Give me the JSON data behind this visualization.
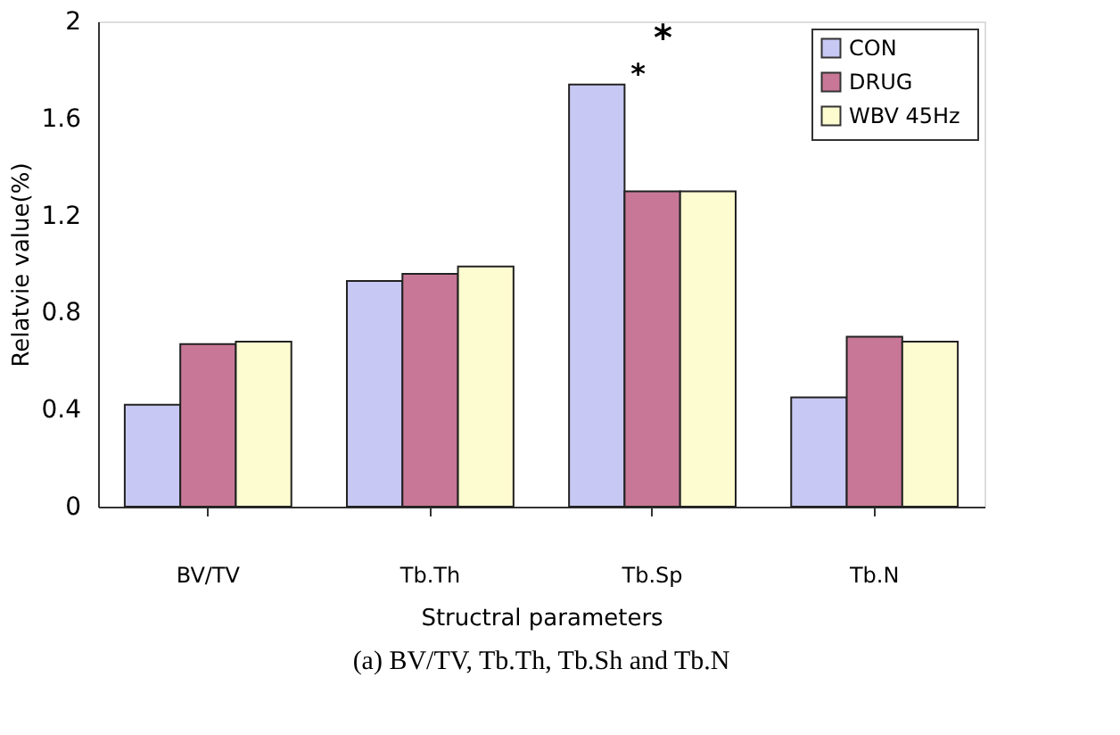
{
  "chart_data": {
    "type": "bar",
    "xlabel": "Structral parameters",
    "ylabel": "Relatvie value(%)",
    "categories": [
      "BV/TV",
      "Tb.Th",
      "Tb.Sp",
      "Tb.N"
    ],
    "series": [
      {
        "name": "CON",
        "color": "#c8c8f4",
        "values": [
          0.42,
          0.93,
          1.74,
          0.45
        ]
      },
      {
        "name": "DRUG",
        "color": "#c87896",
        "values": [
          0.67,
          0.96,
          1.3,
          0.7
        ]
      },
      {
        "name": "WBV  45Hz",
        "color": "#fdfbd0",
        "values": [
          0.68,
          0.99,
          1.3,
          0.68
        ]
      }
    ],
    "ylim": [
      0,
      2
    ],
    "yticks": [
      0,
      0.4,
      0.8,
      1.2,
      1.6,
      2
    ],
    "grid": false,
    "legend": "top right",
    "annotations": [
      "*",
      "*",
      "(a) BV/TV, Tb.Th, Tb.Sh and Tb.N"
    ]
  }
}
